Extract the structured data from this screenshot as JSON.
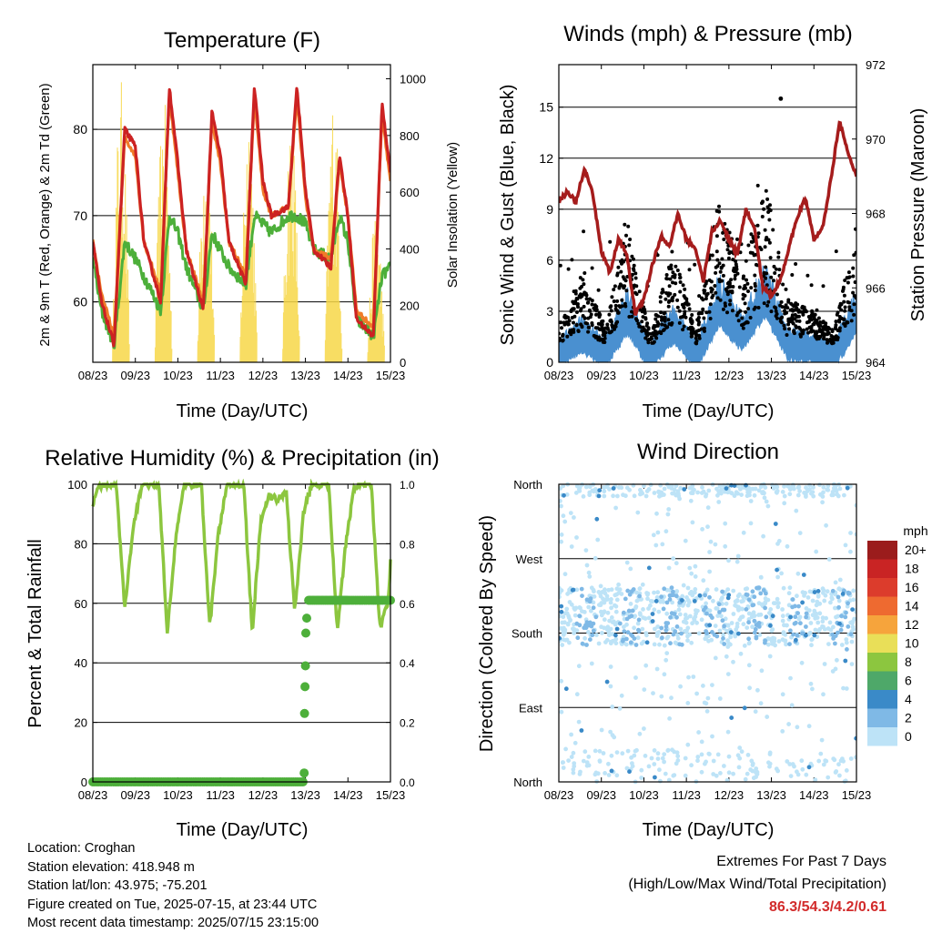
{
  "panels": {
    "temperature": {
      "title": "Temperature (F)",
      "ylabel_left": "2m & 9m T (Red, Orange) & 2m Td (Green)",
      "ylabel_right": "Solar Insolation (Yellow)",
      "xlabel": "Time (Day/UTC)"
    },
    "winds": {
      "title": "Winds (mph) & Pressure (mb)",
      "ylabel_left": "Sonic Wind & Gust (Blue, Black)",
      "ylabel_right": "Station Pressure (Maroon)",
      "xlabel": "Time (Day/UTC)"
    },
    "humidity": {
      "title": "Relative Humidity (%) & Precipitation (in)",
      "ylabel_left": "Percent & Total Rainfall",
      "xlabel": "Time (Day/UTC)"
    },
    "direction": {
      "title": "Wind Direction",
      "ylabel_left": "Direction (Colored By Speed)",
      "xlabel": "Time (Day/UTC)",
      "colorbar_title": "mph"
    }
  },
  "station": {
    "location": "Location: Croghan",
    "elevation": "Station elevation: 418.948 m",
    "latlon": "Station lat/lon: 43.975; -75.201",
    "created": "Figure created on Tue, 2025-07-15, at 23:44 UTC",
    "timestamp": "Most recent data timestamp: 2025/07/15 23:15:00"
  },
  "extremes": {
    "title": "Extremes For Past 7 Days",
    "subtitle": "(High/Low/Max Wind/Total Precipitation)",
    "values": "86.3/54.3/4.2/0.61"
  },
  "colors": {
    "temp_2m": "#cc2222",
    "temp_9m": "#f07c28",
    "dewpoint": "#4daf3a",
    "solar": "#f7d748",
    "wind": "#4a90d0",
    "gust": "#000000",
    "pressure": "#a51c1c",
    "rh": "#8cc63f",
    "precip": "#4daf3a"
  },
  "chart_data": [
    {
      "type": "line",
      "title": "Temperature (F)",
      "xlabel": "Time (Day/UTC)",
      "ylabel": "2m & 9m T (Red, Orange) & 2m Td (Green)",
      "y2label": "Solar Insolation (Yellow)",
      "x_ticks": [
        "08/23",
        "09/23",
        "10/23",
        "11/23",
        "12/23",
        "13/23",
        "14/23",
        "15/23"
      ],
      "x_range_days": [
        0,
        7
      ],
      "ylim": [
        53,
        87.5
      ],
      "y_ticks": [
        60,
        70,
        80
      ],
      "y2lim": [
        0,
        1050
      ],
      "y2_ticks": [
        0,
        200,
        400,
        600,
        800,
        1000
      ],
      "grid": true,
      "series": [
        {
          "name": "2m T",
          "axis": "left",
          "x": [
            0,
            0.2,
            0.5,
            0.75,
            1,
            1.2,
            1.6,
            1.8,
            2,
            2.2,
            2.6,
            2.8,
            3,
            3.2,
            3.6,
            3.8,
            4,
            4.2,
            4.6,
            4.8,
            5,
            5.2,
            5.6,
            5.8,
            6,
            6.2,
            6.6,
            6.8,
            7
          ],
          "y": [
            67,
            60,
            55,
            80,
            78,
            67,
            60,
            85,
            76,
            66,
            59,
            82,
            77,
            67,
            62,
            85,
            74,
            70,
            71,
            85,
            73,
            66,
            64,
            77,
            70,
            58,
            56,
            83,
            75
          ]
        },
        {
          "name": "9m T",
          "axis": "left",
          "x": [
            0,
            0.2,
            0.5,
            0.75,
            1,
            1.2,
            1.6,
            1.8,
            2,
            2.2,
            2.6,
            2.8,
            3,
            3.2,
            3.6,
            3.8,
            4,
            4.2,
            4.6,
            4.8,
            5,
            5.2,
            5.6,
            5.8,
            6,
            6.2,
            6.6,
            6.8,
            7
          ],
          "y": [
            67,
            61,
            56,
            79,
            77,
            67,
            61,
            84,
            75,
            66,
            60,
            81,
            76,
            67,
            63,
            84,
            73,
            70,
            71,
            84,
            72,
            66,
            65,
            76,
            70,
            59,
            57,
            82,
            74
          ]
        },
        {
          "name": "2m Td",
          "axis": "left",
          "x": [
            0,
            0.2,
            0.5,
            0.75,
            1,
            1.2,
            1.6,
            1.8,
            2,
            2.2,
            2.6,
            2.8,
            3,
            3.2,
            3.6,
            3.8,
            4,
            4.2,
            4.6,
            4.8,
            5,
            5.2,
            5.6,
            5.8,
            6,
            6.2,
            6.6,
            6.8,
            7
          ],
          "y": [
            65,
            59,
            55,
            67,
            65,
            63,
            59,
            70,
            68,
            64,
            59,
            68,
            66,
            64,
            62,
            70,
            69,
            68,
            70,
            70,
            69,
            66,
            65,
            70,
            67,
            58,
            56,
            63,
            64
          ]
        },
        {
          "name": "Solar Insolation",
          "axis": "right",
          "day_peaks": [
            1000,
            950,
            900,
            950,
            900,
            980,
            550,
            950
          ]
        }
      ]
    },
    {
      "type": "line",
      "title": "Winds (mph) & Pressure (mb)",
      "xlabel": "Time (Day/UTC)",
      "ylabel": "Sonic Wind & Gust (Blue, Black)",
      "y2label": "Station Pressure (Maroon)",
      "x_ticks": [
        "08/23",
        "09/23",
        "10/23",
        "11/23",
        "12/23",
        "13/23",
        "14/23",
        "15/23"
      ],
      "x_range_days": [
        0,
        7
      ],
      "ylim": [
        0,
        17.5
      ],
      "y_ticks": [
        0,
        3,
        6,
        9,
        12,
        15
      ],
      "y2lim": [
        964,
        972
      ],
      "y2_ticks": [
        964,
        966,
        968,
        970,
        972
      ],
      "grid": true,
      "series": [
        {
          "name": "Station Pressure",
          "axis": "right",
          "x": [
            0,
            0.2,
            0.4,
            0.6,
            0.8,
            1.0,
            1.2,
            1.4,
            1.6,
            1.8,
            2.0,
            2.2,
            2.4,
            2.6,
            2.8,
            3.0,
            3.2,
            3.4,
            3.6,
            3.8,
            4.0,
            4.2,
            4.4,
            4.6,
            4.8,
            5.0,
            5.2,
            5.4,
            5.6,
            5.8,
            6.0,
            6.2,
            6.4,
            6.6,
            6.8,
            7.0
          ],
          "y": [
            968.3,
            968.6,
            968.3,
            969.2,
            968.5,
            967.0,
            966.4,
            967.3,
            966.9,
            965.3,
            965.7,
            966.6,
            967.4,
            967.1,
            968.0,
            967.3,
            967.1,
            966.2,
            967.5,
            967.8,
            967.3,
            966.9,
            968.1,
            967.6,
            966.0,
            965.8,
            966.2,
            967.0,
            967.9,
            968.4,
            967.3,
            967.6,
            968.9,
            970.5,
            969.6,
            969.0
          ]
        },
        {
          "name": "Sonic Wind",
          "axis": "left",
          "mean_profile": [
            0.5,
            1.5,
            0.5,
            2.5,
            0.3,
            2.0,
            0.4,
            3.0,
            1.5,
            3.5,
            1.0,
            0.8,
            0.4,
            2.5
          ]
        },
        {
          "name": "Gust",
          "axis": "left",
          "max": 15.5
        }
      ]
    },
    {
      "type": "line",
      "title": "Relative Humidity (%) & Precipitation (in)",
      "xlabel": "Time (Day/UTC)",
      "ylabel": "Percent & Total Rainfall",
      "x_ticks": [
        "08/23",
        "09/23",
        "10/23",
        "11/23",
        "12/23",
        "13/23",
        "14/23",
        "15/23"
      ],
      "x_range_days": [
        0,
        7
      ],
      "ylim": [
        0,
        100
      ],
      "y_ticks": [
        0,
        20,
        40,
        60,
        80,
        100
      ],
      "y2lim": [
        0,
        1.0
      ],
      "y2_ticks": [
        0.0,
        0.2,
        0.4,
        0.6,
        0.8,
        1.0
      ],
      "grid": true,
      "series": [
        {
          "name": "Relative Humidity",
          "axis": "left",
          "x": [
            0,
            0.1,
            0.25,
            0.55,
            0.75,
            0.95,
            1.15,
            1.3,
            1.55,
            1.75,
            1.95,
            2.15,
            2.3,
            2.55,
            2.75,
            2.95,
            3.15,
            3.3,
            3.55,
            3.75,
            3.95,
            4.15,
            4.3,
            4.55,
            4.75,
            4.95,
            5.15,
            5.3,
            5.55,
            5.75,
            5.95,
            6.15,
            6.3,
            6.55,
            6.75,
            6.95,
            7
          ],
          "y": [
            93,
            99,
            100,
            100,
            58,
            85,
            100,
            100,
            100,
            50,
            82,
            100,
            100,
            100,
            52,
            83,
            100,
            100,
            100,
            50,
            88,
            96,
            95,
            97,
            57,
            90,
            100,
            100,
            100,
            51,
            80,
            99,
            100,
            100,
            52,
            60,
            75
          ]
        },
        {
          "name": "Total Precipitation",
          "axis": "right",
          "x": [
            0,
            4.95,
            4.97,
            4.98,
            4.99,
            5.0,
            5.01,
            5.03,
            5.05,
            7.0
          ],
          "y": [
            0,
            0,
            0.03,
            0.23,
            0.32,
            0.39,
            0.5,
            0.55,
            0.61,
            0.61
          ]
        }
      ]
    },
    {
      "type": "scatter",
      "title": "Wind Direction",
      "xlabel": "Time (Day/UTC)",
      "ylabel": "Direction (Colored By Speed)",
      "x_ticks": [
        "08/23",
        "09/23",
        "10/23",
        "11/23",
        "12/23",
        "13/23",
        "14/23",
        "15/23"
      ],
      "y_ticks": [
        "North",
        "East",
        "South",
        "West",
        "North"
      ],
      "ylim_deg": [
        0,
        360
      ],
      "grid": true,
      "colorbar": {
        "title": "mph",
        "labels": [
          "20+",
          "18",
          "16",
          "14",
          "12",
          "10",
          "8",
          "6",
          "4",
          "2",
          "0"
        ],
        "colors": [
          "#9b1c1c",
          "#c92424",
          "#dc3c2c",
          "#ee6a30",
          "#f6a43c",
          "#e9df58",
          "#8cc63f",
          "#4ea869",
          "#3a8ac8",
          "#7fb9e6",
          "#bde3f7"
        ]
      }
    }
  ]
}
